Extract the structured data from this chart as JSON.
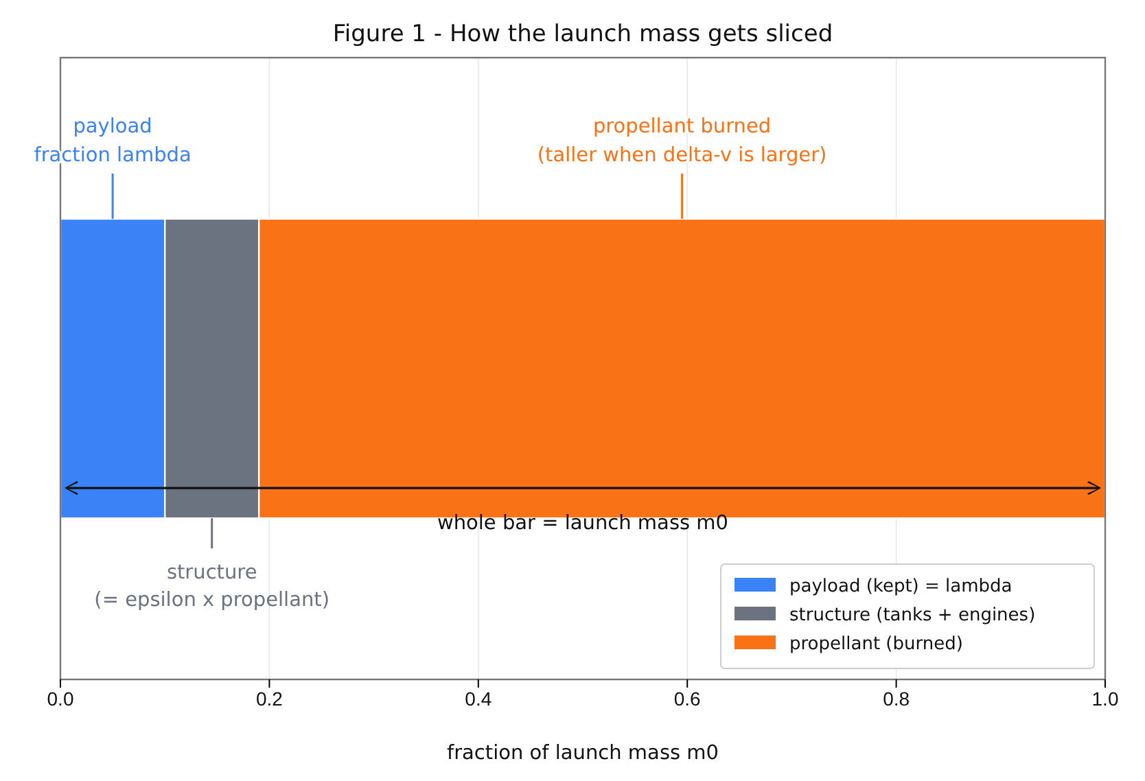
{
  "chart_data": {
    "type": "bar",
    "title": "Figure 1 - How the launch mass gets sliced",
    "xlabel": "fraction of launch mass m0",
    "orientation": "horizontal",
    "stacked": true,
    "categories": [
      null
    ],
    "series": [
      {
        "name": "payload (kept) = lambda",
        "color": "#3b82f6",
        "values": [
          0.1
        ]
      },
      {
        "name": "structure (tanks + engines)",
        "color": "#6b7280",
        "values": [
          0.09
        ]
      },
      {
        "name": "propellant (burned)",
        "color": "#f97316",
        "values": [
          0.81
        ]
      }
    ],
    "xlim": [
      0,
      1
    ],
    "xticks": [
      {
        "value": 0,
        "label": "0.0"
      },
      0.2,
      0.4,
      0.6,
      0.8,
      {
        "value": 1,
        "label": "1.0"
      }
    ],
    "grid": "x",
    "legend": "bottom right",
    "tick_labels": "x",
    "annotations": [
      "payload\nfraction lambda",
      "structure\n(= epsilon x propellant)",
      "propellant burned\n(taller when delta-v is larger)",
      "whole bar = launch mass m0"
    ]
  }
}
